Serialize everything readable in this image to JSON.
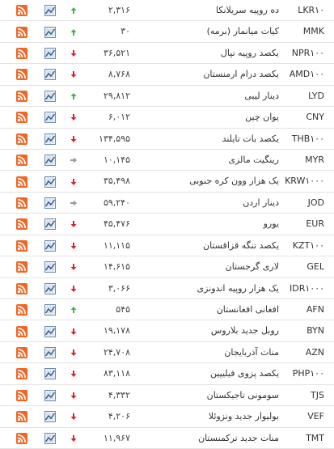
{
  "table": {
    "rows": [
      [
        "LKR۱۰",
        "ده روپیه سریلانکا",
        "۲,۳۱۶",
        "up"
      ],
      [
        "MMK",
        "کیات میانمار (برمه)",
        "۳۰",
        "up"
      ],
      [
        "NPR۱۰۰",
        "یکصد روپیه نپال",
        "۳۶,۵۲۱",
        "down"
      ],
      [
        "AMD۱۰۰",
        "یکصد درام ارمنستان",
        "۸,۷۶۸",
        "down"
      ],
      [
        "LYD",
        "دینار لیبی",
        "۲۹,۸۱۲",
        "up"
      ],
      [
        "CNY",
        "یوان چین",
        "۶,۰۱۲",
        "down"
      ],
      [
        "THB۱۰۰",
        "یکصد بات تایلند",
        "۱۳۴,۵۹۵",
        "down"
      ],
      [
        "MYR",
        "رینگیت مالزی",
        "۱۰,۱۴۵",
        "same"
      ],
      [
        "KRW۱۰۰۰",
        "یک هزار وون کره جنوبی",
        "۳۵,۴۹۸",
        "down"
      ],
      [
        "JOD",
        "دینار اردن",
        "۵۹,۲۴۰",
        "same"
      ],
      [
        "EUR",
        "یورو",
        "۴۵,۴۷۶",
        "down"
      ],
      [
        "KZT۱۰۰",
        "یکصد تنگه قزاقستان",
        "۱۱,۱۱۵",
        "down"
      ],
      [
        "GEL",
        "لاری گرجستان",
        "۱۴,۶۱۵",
        "down"
      ],
      [
        "IDR۱۰۰۰",
        "یک هزار روپیه اندونزی",
        "۳,۰۶۶",
        "down"
      ],
      [
        "AFN",
        "افغانی افغانستان",
        "۵۴۵",
        "up"
      ],
      [
        "BYN",
        "روبل جدید بلاروس",
        "۱۹,۱۷۸",
        "down"
      ],
      [
        "AZN",
        "منات آذربایجان",
        "۲۴,۷۰۸",
        "down"
      ],
      [
        "PHP۱۰۰",
        "یکصد پزوی فیلیپین",
        "۸۳,۱۱۸",
        "down"
      ],
      [
        "TJS",
        "سومونی تاجیکستان",
        "۴,۳۳۲",
        "down"
      ],
      [
        "VEF",
        "بولیوار جدید ونزوئلا",
        "۴,۲۰۶",
        "down"
      ],
      [
        "TMT",
        "منات جدید ترکمنستان",
        "۱۱,۹۶۷",
        "down"
      ]
    ]
  }
}
